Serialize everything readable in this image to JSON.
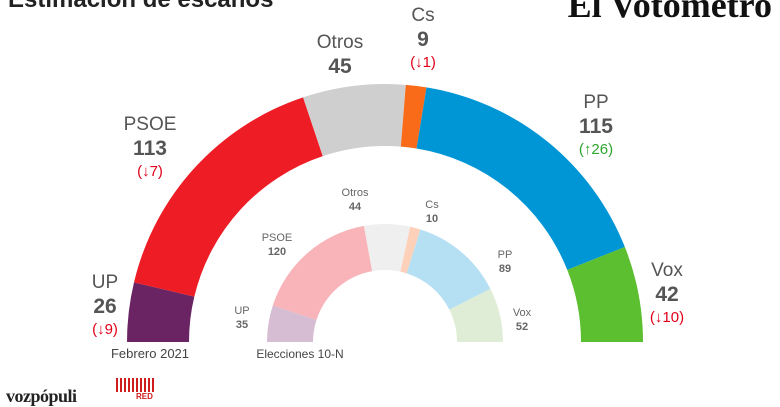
{
  "header": {
    "title": "Estimación de escaños",
    "brand": "El Votómetro"
  },
  "footer": {
    "logo_left": "vozpópuli",
    "logo_right": "RED"
  },
  "chart_data": [
    {
      "type": "semicircle",
      "caption": "Febrero 2021",
      "total": 350,
      "series": [
        {
          "name": "UP",
          "value": 26,
          "change": "(↓9)",
          "direction": "down",
          "color": "#6b2463"
        },
        {
          "name": "PSOE",
          "value": 113,
          "change": "(↓7)",
          "direction": "down",
          "color": "#ee1c25"
        },
        {
          "name": "Otros",
          "value": 45,
          "change": "",
          "direction": "none",
          "color": "#cfcfcf"
        },
        {
          "name": "Cs",
          "value": 9,
          "change": "(↓1)",
          "direction": "down",
          "color": "#f96b18"
        },
        {
          "name": "PP",
          "value": 115,
          "change": "(↑26)",
          "direction": "up",
          "color": "#0096d6"
        },
        {
          "name": "Vox",
          "value": 42,
          "change": "(↓10)",
          "direction": "down",
          "color": "#5bbf2f"
        }
      ]
    },
    {
      "type": "semicircle",
      "caption": "Elecciones 10-N",
      "total": 350,
      "series": [
        {
          "name": "UP",
          "value": 35,
          "color": "#d6bdd3"
        },
        {
          "name": "PSOE",
          "value": 120,
          "color": "#f8b4b8"
        },
        {
          "name": "Otros",
          "value": 44,
          "color": "#efefef"
        },
        {
          "name": "Cs",
          "value": 10,
          "color": "#fdd0ba"
        },
        {
          "name": "PP",
          "value": 89,
          "color": "#b5e0f3"
        },
        {
          "name": "Vox",
          "value": 52,
          "color": "#dfedd6"
        }
      ]
    }
  ]
}
